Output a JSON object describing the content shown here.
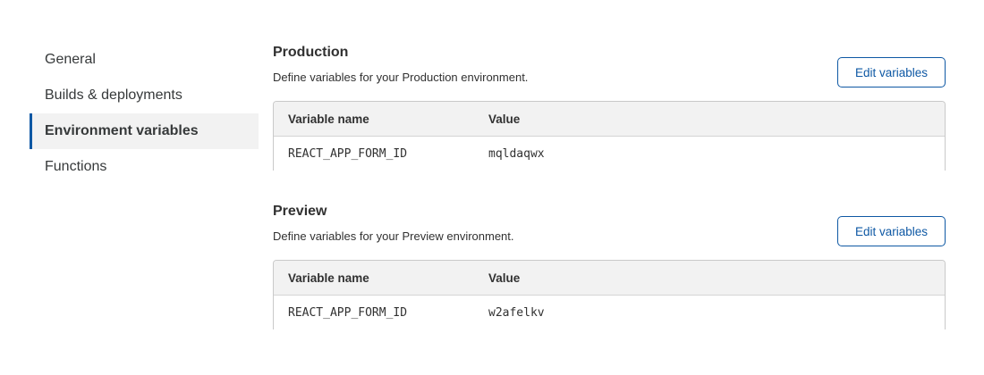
{
  "sidebar": {
    "items": [
      {
        "label": "General"
      },
      {
        "label": "Builds & deployments"
      },
      {
        "label": "Environment variables",
        "active": true
      },
      {
        "label": "Functions"
      }
    ]
  },
  "colors": {
    "accent": "#0e58a4"
  },
  "sections": [
    {
      "title": "Production",
      "description": "Define variables for your Production environment.",
      "button": "Edit variables",
      "columns": [
        "Variable name",
        "Value"
      ],
      "rows": [
        {
          "name": "REACT_APP_FORM_ID",
          "value": "mqldaqwx"
        }
      ]
    },
    {
      "title": "Preview",
      "description": "Define variables for your Preview environment.",
      "button": "Edit variables",
      "columns": [
        "Variable name",
        "Value"
      ],
      "rows": [
        {
          "name": "REACT_APP_FORM_ID",
          "value": "w2afelkv"
        }
      ]
    }
  ]
}
